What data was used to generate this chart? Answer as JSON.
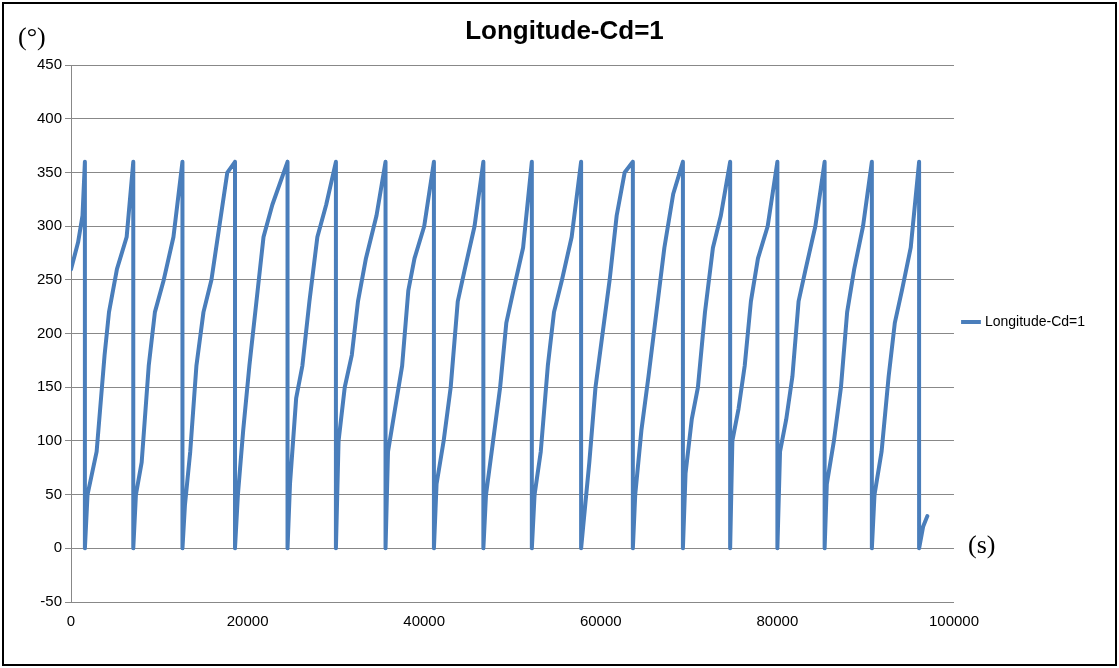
{
  "chart_data": {
    "type": "line",
    "title": "Longitude-Cd=1",
    "xlabel": "(s)",
    "ylabel": "(°)",
    "xlim": [
      0,
      100000
    ],
    "xticks": [
      0,
      20000,
      40000,
      60000,
      80000,
      100000
    ],
    "ylim": [
      -50,
      450
    ],
    "yticks": [
      -50,
      0,
      50,
      100,
      150,
      200,
      250,
      300,
      350,
      400,
      450
    ],
    "grid": "y",
    "legend": "right",
    "marker": "none",
    "line_style": "solid",
    "series": [
      {
        "name": "Longitude-Cd=1",
        "color": "#4a7ebb",
        "x": [
          0,
          800,
          1300,
          1570,
          1570,
          1870,
          2900,
          3800,
          4300,
          5200,
          6300,
          7050,
          7050,
          7350,
          8000,
          8800,
          9500,
          10500,
          11600,
          12620,
          12620,
          12900,
          13500,
          14200,
          15000,
          15900,
          16800,
          17700,
          18570,
          18570,
          18900,
          19500,
          20200,
          21000,
          21800,
          22800,
          24520,
          24520,
          24800,
          25500,
          26200,
          27000,
          27900,
          28900,
          30000,
          30000,
          30300,
          31000,
          31800,
          32500,
          33400,
          34600,
          35620,
          35620,
          35900,
          36700,
          37500,
          38200,
          38900,
          40000,
          41100,
          41100,
          41400,
          42200,
          43000,
          43800,
          44600,
          45700,
          46700,
          46700,
          47000,
          47800,
          48600,
          49300,
          50100,
          51200,
          52190,
          52190,
          52500,
          53200,
          54000,
          54700,
          55600,
          56700,
          57770,
          57770,
          58000,
          58700,
          59400,
          60200,
          61000,
          61800,
          62700,
          63630,
          63630,
          63900,
          64600,
          65400,
          66300,
          67200,
          68200,
          69300,
          69300,
          69600,
          70300,
          71000,
          71800,
          72700,
          73600,
          74650,
          74650,
          74900,
          75600,
          76300,
          77000,
          77800,
          78900,
          80000,
          80000,
          80300,
          81000,
          81700,
          82400,
          83200,
          84300,
          85350,
          85350,
          85600,
          86400,
          87200,
          87900,
          88700,
          89700,
          90700,
          90700,
          91000,
          91800,
          92600,
          93300,
          94100,
          95100,
          96050,
          96050,
          96500,
          96980
        ],
        "values": [
          260,
          285,
          310,
          360,
          0,
          50,
          90,
          180,
          220,
          260,
          290,
          360,
          0,
          50,
          80,
          170,
          220,
          250,
          290,
          360,
          0,
          40,
          90,
          170,
          220,
          250,
          300,
          350,
          360,
          0,
          50,
          110,
          170,
          230,
          290,
          320,
          360,
          0,
          60,
          140,
          170,
          230,
          290,
          320,
          360,
          0,
          100,
          150,
          180,
          230,
          270,
          310,
          360,
          0,
          90,
          130,
          170,
          240,
          270,
          300,
          360,
          0,
          60,
          100,
          150,
          230,
          260,
          300,
          360,
          0,
          50,
          100,
          150,
          210,
          240,
          280,
          360,
          0,
          50,
          90,
          170,
          220,
          250,
          290,
          360,
          0,
          20,
          80,
          150,
          200,
          250,
          310,
          350,
          360,
          0,
          50,
          110,
          160,
          220,
          280,
          330,
          360,
          0,
          70,
          120,
          150,
          220,
          280,
          310,
          360,
          0,
          100,
          130,
          170,
          230,
          270,
          300,
          360,
          0,
          90,
          120,
          160,
          230,
          260,
          300,
          360,
          0,
          60,
          100,
          150,
          220,
          260,
          300,
          360,
          0,
          50,
          90,
          160,
          210,
          240,
          280,
          360,
          0,
          20,
          30
        ]
      }
    ]
  }
}
